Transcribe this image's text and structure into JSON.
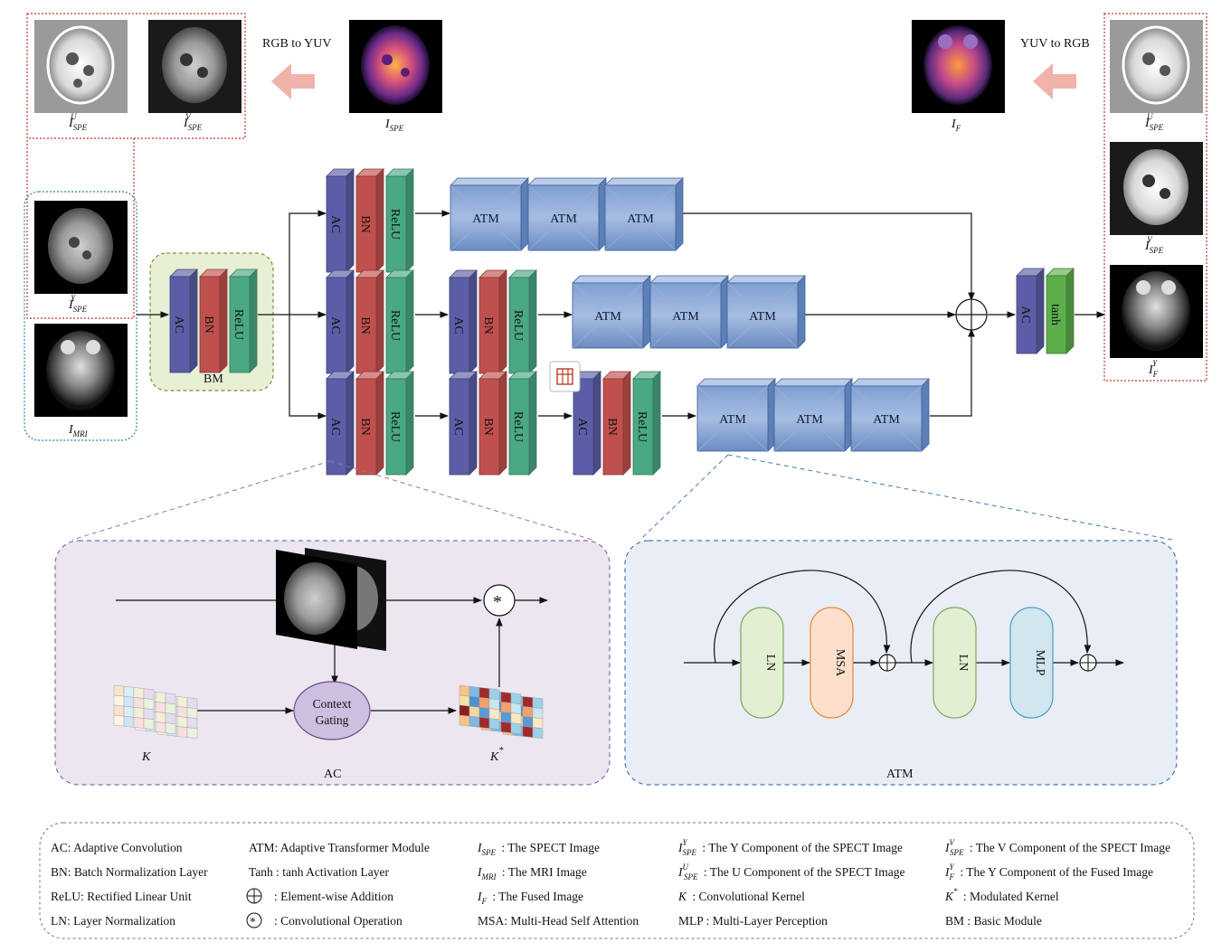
{
  "images": {
    "spe": {
      "base": "I",
      "sub": "SPE",
      "sup": ""
    },
    "spe_u": {
      "base": "I",
      "sub": "SPE",
      "sup": "U"
    },
    "spe_v": {
      "base": "I",
      "sub": "SPE",
      "sup": "V"
    },
    "spe_y": {
      "base": "I",
      "sub": "SPE",
      "sup": "Y"
    },
    "mri": {
      "base": "I",
      "sub": "MRI",
      "sup": ""
    },
    "fused": {
      "base": "I",
      "sub": "F",
      "sup": ""
    },
    "fused_y": {
      "base": "I",
      "sub": "F",
      "sup": "Y"
    }
  },
  "conversions": {
    "rgb_to_yuv": "RGB to YUV",
    "yuv_to_rgb": "YUV to RGB"
  },
  "blocks": {
    "ac": "AC",
    "bn": "BN",
    "relu": "ReLU",
    "atm": "ATM",
    "tanh": "tanh"
  },
  "modules": {
    "bm": "BM",
    "ac_panel_title": "AC",
    "atm_panel_title": "ATM"
  },
  "ac_detail": {
    "context_gating_line1": "Context",
    "context_gating_line2": "Gating",
    "kernel": "K",
    "modulated_kernel": "K",
    "modulated_sup": "*",
    "conv_op": "*"
  },
  "atm_detail": {
    "ln": "LN",
    "msa": "MSA",
    "mlp": "MLP"
  },
  "legend": {
    "col1": [
      "AC: Adaptive Convolution",
      "BN: Batch Normalization Layer",
      "ReLU:  Rectified Linear Unit",
      "LN: Layer Normalization"
    ],
    "col2": [
      "ATM: Adaptive Transformer Module",
      "Tanh : tanh Activation Layer",
      ": Element-wise Addition",
      ": Convolutional Operation"
    ],
    "col3": [
      {
        "base": "I",
        "sub": "SPE",
        "sup": "",
        "text": ": The SPECT Image"
      },
      {
        "base": "I",
        "sub": "MRI",
        "sup": "",
        "text": ": The MRI Image"
      },
      {
        "base": "I",
        "sub": "F",
        "sup": "",
        "text": ": The Fused Image"
      },
      {
        "base": "",
        "sub": "",
        "sup": "",
        "text": "MSA:  Multi-Head Self Attention"
      }
    ],
    "col4": [
      {
        "base": "I",
        "sub": "SPE",
        "sup": "Y",
        "text": ": The Y Component of the SPECT Image"
      },
      {
        "base": "I",
        "sub": "SPE",
        "sup": "U",
        "text": ": The U Component of the SPECT Image"
      },
      {
        "base": "K",
        "sub": "",
        "sup": "",
        "text": ": Convolutional Kernel"
      },
      {
        "base": "",
        "sub": "",
        "sup": "",
        "text": "MLP : Multi-Layer Perception"
      }
    ],
    "col5": [
      {
        "base": "I",
        "sub": "SPE",
        "sup": "V",
        "text": ": The V Component of the SPECT Image"
      },
      {
        "base": "I",
        "sub": "F",
        "sup": "Y",
        "text": ": The Y Component of the Fused Image"
      },
      {
        "base": "K",
        "sub": "",
        "sup": "*",
        "text": ": Modulated Kernel"
      },
      {
        "base": "",
        "sub": "",
        "sup": "",
        "text": "BM : Basic Module"
      }
    ]
  },
  "colors": {
    "ac": "#5b5ea6",
    "bn": "#c0504d",
    "relu": "#4aa882",
    "tanh": "#5cae4a",
    "atm": "#6f92c6",
    "bm_bg": "#e7f0d4",
    "ac_panel_bg": "#ece6f0",
    "atm_panel_bg": "#e9eef6"
  }
}
